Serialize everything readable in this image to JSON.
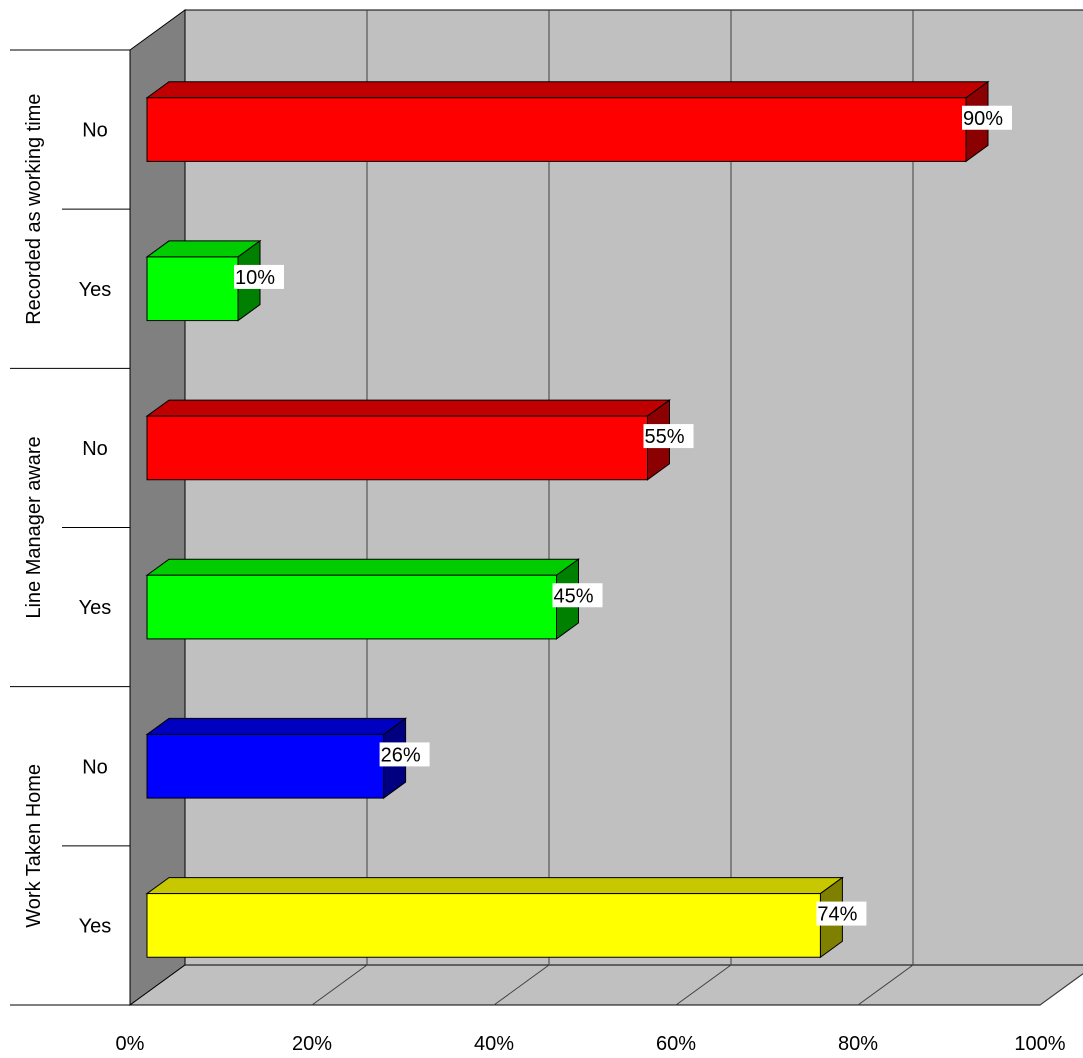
{
  "chart_data": {
    "type": "bar",
    "orientation": "horizontal",
    "style": "3d",
    "groups": [
      {
        "label": "Recorded as working time",
        "bars": [
          {
            "category": "No",
            "value": 90,
            "label": "90%",
            "color": "#ff0000",
            "top_color": "#c00000",
            "side_color": "#8b0000"
          },
          {
            "category": "Yes",
            "value": 10,
            "label": "10%",
            "color": "#00ff00",
            "top_color": "#00cc00",
            "side_color": "#008000"
          }
        ]
      },
      {
        "label": "Line Manager aware",
        "bars": [
          {
            "category": "No",
            "value": 55,
            "label": "55%",
            "color": "#ff0000",
            "top_color": "#c00000",
            "side_color": "#8b0000"
          },
          {
            "category": "Yes",
            "value": 45,
            "label": "45%",
            "color": "#00ff00",
            "top_color": "#00cc00",
            "side_color": "#008000"
          }
        ]
      },
      {
        "label": "Work Taken Home",
        "bars": [
          {
            "category": "No",
            "value": 26,
            "label": "26%",
            "color": "#0000ff",
            "top_color": "#0000c0",
            "side_color": "#000080"
          },
          {
            "category": "Yes",
            "value": 74,
            "label": "74%",
            "color": "#ffff00",
            "top_color": "#c8c800",
            "side_color": "#808000"
          }
        ]
      }
    ],
    "x_ticks": [
      "0%",
      "20%",
      "40%",
      "60%",
      "80%",
      "100%"
    ],
    "xlim": [
      0,
      100
    ],
    "grid": true,
    "colors": {
      "wall": "#c0c0c0",
      "left_wall": "#808080",
      "floor": "#c0c0c0",
      "gridline": "#404040"
    }
  }
}
